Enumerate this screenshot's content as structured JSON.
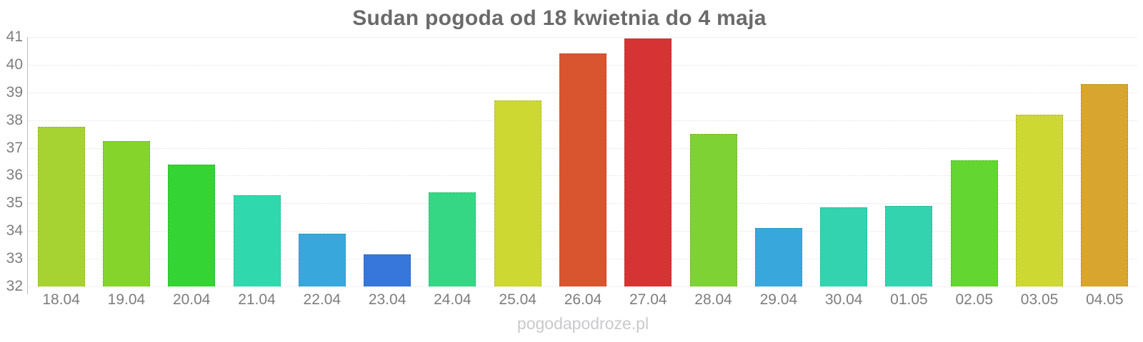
{
  "watermark": "pogodapodroze.pl",
  "chart_data": {
    "type": "bar",
    "title": "Sudan pogoda od 18 kwietnia do 4 maja",
    "categories": [
      "18.04",
      "19.04",
      "20.04",
      "21.04",
      "22.04",
      "23.04",
      "24.04",
      "25.04",
      "26.04",
      "27.04",
      "28.04",
      "29.04",
      "30.04",
      "01.05",
      "02.05",
      "03.05",
      "04.05"
    ],
    "series": [
      {
        "name": "Temperatura",
        "values": [
          37.75,
          37.25,
          36.4,
          35.3,
          33.9,
          33.15,
          35.4,
          38.7,
          40.4,
          40.95,
          37.5,
          34.1,
          34.85,
          34.9,
          36.55,
          38.2,
          39.3
        ]
      }
    ],
    "bar_colors": [
      "#a6d332",
      "#84d42c",
      "#33d433",
      "#30d8ad",
      "#38a8dc",
      "#3776db",
      "#35d785",
      "#cdd832",
      "#d85530",
      "#d63434",
      "#7fd233",
      "#38a8dc",
      "#33d3b0",
      "#33d3b0",
      "#63d631",
      "#cdd832",
      "#d8a62e"
    ],
    "xlabel": "",
    "ylabel": "",
    "ylim": [
      32,
      41
    ],
    "yticks": [
      32,
      33,
      34,
      35,
      36,
      37,
      38,
      39,
      40,
      41
    ],
    "grid": "horizontal-dotted",
    "legend": "none"
  },
  "style": {
    "title_color": "#6a6a6a",
    "tick_label_color": "#7d7d7d",
    "gridline_color": "#e3e3e3",
    "axis_line_color": "#bdbdbd",
    "watermark_color": "#c9c9cd",
    "background": "#ffffff"
  }
}
